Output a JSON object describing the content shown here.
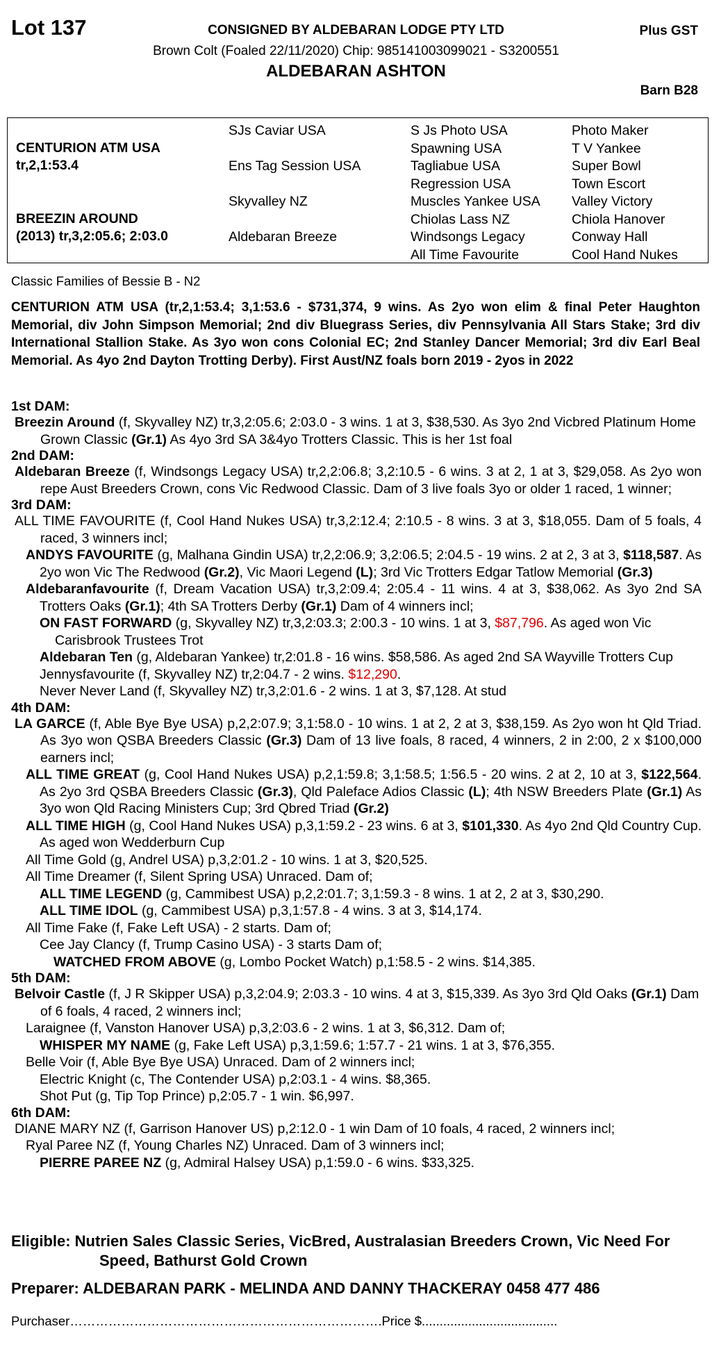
{
  "header": {
    "lot": "Lot 137",
    "consigned": "CONSIGNED BY ALDEBARAN LODGE PTY LTD",
    "gst": "Plus GST",
    "description": "Brown Colt (Foaled 22/11/2020) Chip: 985141003099021 - S3200551",
    "horse_name": "ALDEBARAN ASHTON",
    "barn": "Barn B28"
  },
  "pedigree": {
    "sire": "CENTURION ATM USA",
    "sire_record": "tr,2,1:53.4",
    "dam": "BREEZIN AROUND",
    "dam_record": "(2013) tr,3,2:05.6; 2:03.0",
    "col2": [
      "SJs Caviar USA",
      "Ens Tag Session USA",
      "Skyvalley NZ",
      "Aldebaran Breeze"
    ],
    "col3": [
      "S Js Photo USA",
      "Spawning USA",
      "Tagliabue USA",
      "Regression USA",
      "Muscles Yankee USA",
      "Chiolas Lass NZ",
      "Windsongs Legacy",
      "All Time Favourite"
    ],
    "col4": [
      "Photo Maker",
      "T V Yankee",
      "Super Bowl",
      "Town Escort",
      "Valley Victory",
      "Chiola Hanover",
      "Conway Hall",
      "Cool Hand Nukes"
    ]
  },
  "family": "Classic Families of Bessie B - N2",
  "sire_text": "CENTURION ATM USA (tr,2,1:53.4; 3,1:53.6 - $731,374, 9 wins. As 2yo won elim & final Peter Haughton Memorial, div John Simpson Memorial; 2nd div Bluegrass Series, div Pennsylvania All Stars Stake; 3rd div International Stallion Stake. As 3yo won cons Colonial EC; 2nd Stanley Dancer Memorial; 3rd div Earl Beal Memorial. As 4yo 2nd Dayton Trotting Derby). First Aust/NZ foals born 2019 - 2yos in 2022",
  "colors": {
    "highlight": "#e00000"
  },
  "dams": [
    {
      "heading": "1st DAM:",
      "entries": [
        {
          "lvl": 0,
          "seg": [
            {
              "t": "Breezin Around",
              "b": 1
            },
            {
              "t": " (f, Skyvalley NZ) tr,3,2:05.6; 2:03.0 - 3 wins. 1 at 3, $38,530. As 3yo 2nd Vicbred Platinum Home Grown Classic "
            },
            {
              "t": "(Gr.1)",
              "b": 1
            },
            {
              "t": " As 4yo 3rd SA 3&4yo Trotters Classic. This is her 1st foal"
            }
          ]
        }
      ]
    },
    {
      "heading": "2nd DAM:",
      "entries": [
        {
          "lvl": 0,
          "just": 1,
          "seg": [
            {
              "t": "Aldebaran Breeze",
              "b": 1
            },
            {
              "t": " (f, Windsongs Legacy USA) tr,2,2:06.8; 3,2:10.5 - 6 wins. 3 at 2, 1 at 3, $29,058. As 2yo won repe Aust Breeders Crown, cons Vic Redwood Classic. Dam of 3 live foals 3yo or older 1 raced, 1 winner;"
            }
          ]
        }
      ]
    },
    {
      "heading": "3rd DAM:",
      "entries": [
        {
          "lvl": 0,
          "just": 1,
          "seg": [
            {
              "t": "ALL TIME FAVOURITE (f, Cool Hand Nukes USA) tr,3,2:12.4; 2:10.5 - 8 wins. 3 at 3, $18,055. Dam of 5 foals, 4 raced, 3 winners incl;"
            }
          ]
        },
        {
          "lvl": 1,
          "just": 1,
          "seg": [
            {
              "t": "ANDYS FAVOURITE",
              "b": 1
            },
            {
              "t": " (g, Malhana Gindin USA) tr,2,2:06.9; 3,2:06.5; 2:04.5 - 19 wins. 2 at 2, 3 at 3, "
            },
            {
              "t": "$118,587",
              "b": 1
            },
            {
              "t": ". As 2yo won Vic The Redwood "
            },
            {
              "t": "(Gr.2)",
              "b": 1
            },
            {
              "t": ", Vic Maori Legend "
            },
            {
              "t": "(L)",
              "b": 1
            },
            {
              "t": "; 3rd Vic Trotters Edgar Tatlow Memorial "
            },
            {
              "t": "(Gr.3)",
              "b": 1
            }
          ]
        },
        {
          "lvl": 1,
          "just": 1,
          "seg": [
            {
              "t": "Aldebaranfavourite",
              "b": 1
            },
            {
              "t": " (f, Dream Vacation USA) tr,3,2:09.4; 2:05.4 - 11 wins. 4 at 3, $38,062. As 3yo 2nd SA Trotters Oaks "
            },
            {
              "t": "(Gr.1)",
              "b": 1
            },
            {
              "t": "; 4th SA Trotters Derby "
            },
            {
              "t": "(Gr.1)",
              "b": 1
            },
            {
              "t": " Dam of 4 winners incl;"
            }
          ]
        },
        {
          "lvl": 2,
          "seg": [
            {
              "t": "ON FAST FORWARD",
              "b": 1
            },
            {
              "t": " (g, Skyvalley NZ) tr,3,2:03.3; 2:00.3 - 10 wins. 1 at 3, "
            },
            {
              "t": "$87,796",
              "r": 1
            },
            {
              "t": ". As aged won Vic Carisbrook Trustees Trot"
            }
          ]
        },
        {
          "lvl": 2,
          "seg": [
            {
              "t": "Aldebaran Ten",
              "b": 1
            },
            {
              "t": " (g, Aldebaran Yankee) tr,2:01.8 - 16 wins. $58,586. As aged 2nd SA Wayville Trotters Cup"
            }
          ]
        },
        {
          "lvl": 2,
          "seg": [
            {
              "t": "Jennysfavourite (f, Skyvalley NZ) tr,2:04.7 - 2 wins. "
            },
            {
              "t": "$12,290",
              "r": 1
            },
            {
              "t": "."
            }
          ]
        },
        {
          "lvl": 2,
          "seg": [
            {
              "t": "Never Never Land (f, Skyvalley NZ) tr,3,2:01.6 - 2 wins. 1 at 3, $7,128. At stud"
            }
          ]
        }
      ]
    },
    {
      "heading": "4th DAM:",
      "entries": [
        {
          "lvl": 0,
          "just": 1,
          "seg": [
            {
              "t": "LA GARCE",
              "b": 1
            },
            {
              "t": " (f, Able Bye Bye USA) p,2,2:07.9; 3,1:58.0 - 10 wins. 1 at 2, 2 at 3, $38,159. As 2yo won ht Qld Triad. As 3yo won QSBA Breeders Classic "
            },
            {
              "t": "(Gr.3)",
              "b": 1
            },
            {
              "t": " Dam of 13 live foals, 8 raced, 4 winners, 2 in 2:00, 2 x $100,000 earners incl;"
            }
          ]
        },
        {
          "lvl": 1,
          "just": 1,
          "seg": [
            {
              "t": "ALL TIME GREAT",
              "b": 1
            },
            {
              "t": " (g, Cool Hand Nukes USA) p,2,1:59.8; 3,1:58.5; 1:56.5 - 20 wins. 2 at 2, 10 at 3, "
            },
            {
              "t": "$122,564",
              "b": 1
            },
            {
              "t": ". As 2yo 3rd QSBA Breeders Classic "
            },
            {
              "t": "(Gr.3)",
              "b": 1
            },
            {
              "t": ", Qld Paleface Adios Classic "
            },
            {
              "t": "(L)",
              "b": 1
            },
            {
              "t": "; 4th NSW Breeders Plate "
            },
            {
              "t": "(Gr.1)",
              "b": 1
            },
            {
              "t": " As 3yo won Qld Racing Ministers Cup; 3rd Qbred Triad "
            },
            {
              "t": "(Gr.2)",
              "b": 1
            }
          ]
        },
        {
          "lvl": 1,
          "just": 1,
          "seg": [
            {
              "t": "ALL TIME HIGH",
              "b": 1
            },
            {
              "t": " (g, Cool Hand Nukes USA) p,3,1:59.2 - 23 wins. 6 at 3, "
            },
            {
              "t": "$101,330",
              "b": 1
            },
            {
              "t": ". As 4yo 2nd Qld Country Cup. As aged won Wedderburn Cup"
            }
          ]
        },
        {
          "lvl": 1,
          "seg": [
            {
              "t": "All Time Gold (g, Andrel USA) p,3,2:01.2 - 10 wins. 1 at 3, $20,525."
            }
          ]
        },
        {
          "lvl": 1,
          "seg": [
            {
              "t": "All Time Dreamer (f, Silent Spring USA) Unraced. Dam of;"
            }
          ]
        },
        {
          "lvl": 2,
          "seg": [
            {
              "t": "ALL TIME LEGEND",
              "b": 1
            },
            {
              "t": " (g, Cammibest USA) p,2,2:01.7; 3,1:59.3 - 8 wins. 1 at 2, 2 at 3, $30,290."
            }
          ]
        },
        {
          "lvl": 2,
          "seg": [
            {
              "t": "ALL TIME IDOL",
              "b": 1
            },
            {
              "t": " (g, Cammibest USA) p,3,1:57.8 - 4 wins. 3 at 3, $14,174."
            }
          ]
        },
        {
          "lvl": 1,
          "seg": [
            {
              "t": "All Time Fake (f, Fake Left USA) - 2 starts. Dam of;"
            }
          ]
        },
        {
          "lvl": 2,
          "seg": [
            {
              "t": "Cee Jay Clancy (f, Trump Casino USA) - 3 starts Dam of;"
            }
          ]
        },
        {
          "lvl": 3,
          "seg": [
            {
              "t": "WATCHED FROM ABOVE",
              "b": 1
            },
            {
              "t": " (g, Lombo Pocket Watch) p,1:58.5 - 2 wins. $14,385."
            }
          ]
        }
      ]
    },
    {
      "heading": "5th DAM:",
      "entries": [
        {
          "lvl": 0,
          "seg": [
            {
              "t": "Belvoir Castle",
              "b": 1
            },
            {
              "t": " (f, J R Skipper USA) p,3,2:04.9; 2:03.3 - 10 wins. 4 at 3, $15,339. As 3yo 3rd Qld Oaks "
            },
            {
              "t": "(Gr.1)",
              "b": 1
            },
            {
              "t": " Dam of 6 foals, 4 raced, 2 winners incl;"
            }
          ]
        },
        {
          "lvl": 1,
          "seg": [
            {
              "t": "Laraignee (f, Vanston Hanover USA) p,3,2:03.6 - 2 wins. 1 at 3, $6,312. Dam of;"
            }
          ]
        },
        {
          "lvl": 2,
          "seg": [
            {
              "t": "WHISPER MY NAME",
              "b": 1
            },
            {
              "t": " (g, Fake Left USA) p,3,1:59.6; 1:57.7 - 21 wins. 1 at 3, $76,355."
            }
          ]
        },
        {
          "lvl": 1,
          "seg": [
            {
              "t": "Belle Voir (f, Able Bye Bye USA) Unraced. Dam of 2 winners incl;"
            }
          ]
        },
        {
          "lvl": 2,
          "seg": [
            {
              "t": "Electric Knight (c, The Contender USA) p,2:03.1 - 4 wins. $8,365."
            }
          ]
        },
        {
          "lvl": 2,
          "seg": [
            {
              "t": "Shot Put (g, Tip Top Prince) p,2:05.7 - 1 win. $6,997."
            }
          ]
        }
      ]
    },
    {
      "heading": "6th DAM:",
      "entries": [
        {
          "lvl": 0,
          "seg": [
            {
              "t": "DIANE MARY NZ (f, Garrison Hanover US) p,2:12.0 - 1 win Dam of 10 foals, 4 raced, 2 winners incl;"
            }
          ]
        },
        {
          "lvl": 1,
          "seg": [
            {
              "t": "Ryal Paree NZ (f, Young Charles NZ) Unraced. Dam of 3 winners incl;"
            }
          ]
        },
        {
          "lvl": 2,
          "seg": [
            {
              "t": "PIERRE PAREE NZ",
              "b": 1
            },
            {
              "t": " (g, Admiral Halsey USA) p,1:59.0 - 6 wins. $33,325."
            }
          ]
        }
      ]
    }
  ],
  "footer": {
    "eligible": "Eligible: Nutrien Sales Classic Series, VicBred, Australasian Breeders Crown, Vic Need For Speed, Bathurst Gold Crown",
    "preparer": "Preparer: ALDEBARAN PARK - MELINDA AND DANNY THACKERAY 0458 477 486",
    "purchaser": "Purchaser……………………………………………………………….Price $......................................"
  }
}
